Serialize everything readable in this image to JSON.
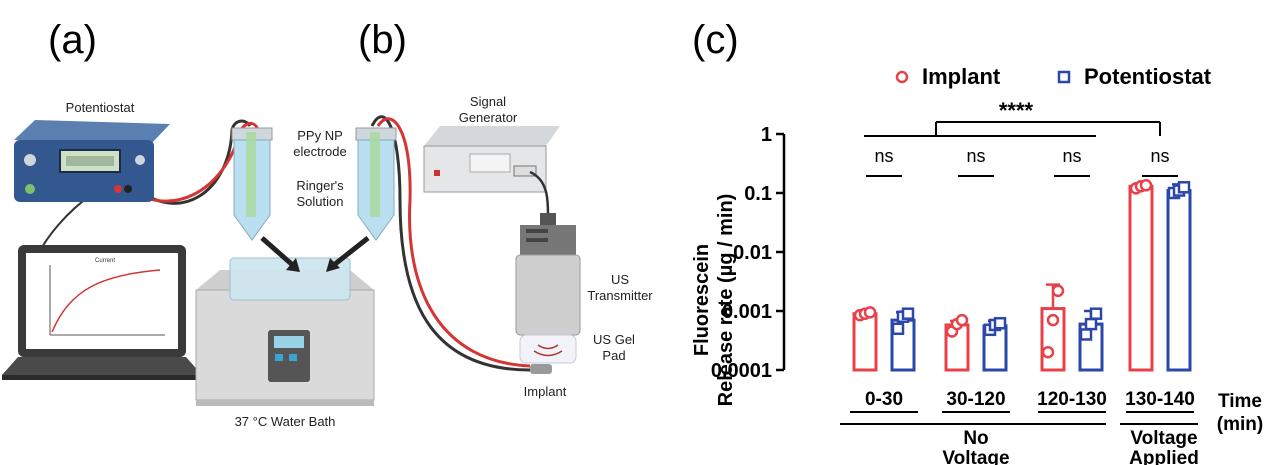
{
  "panels": {
    "a": "(a)",
    "b": "(b)",
    "c": "(c)"
  },
  "setup_labels": {
    "potentiostat": "Potentiostat",
    "ppy_electrode": [
      "PPy NP",
      "electrode"
    ],
    "ringers": [
      "Ringer's",
      "Solution"
    ],
    "water_bath": "37 °C Water Bath",
    "signal_generator": [
      "Signal",
      "Generator"
    ],
    "us_transmitter": [
      "US",
      "Transmitter"
    ],
    "us_gel_pad": [
      "US Gel",
      "Pad"
    ],
    "implant": "Implant",
    "laptop_plot_title": "Current"
  },
  "colors": {
    "implant": "#e8414a",
    "potentiostat": "#2b47a8"
  },
  "chart_data": {
    "type": "bar",
    "ylabel": [
      "Fluorescein",
      "Release rate (µg / min)"
    ],
    "xlabel": [
      "Time",
      "(min)"
    ],
    "yscale": "log",
    "ylim": [
      0.0001,
      1
    ],
    "yticks": [
      "1",
      "0.1",
      "0.01",
      "0.001",
      "0.0001"
    ],
    "categories": [
      "0-30",
      "30-120",
      "120-130",
      "130-140"
    ],
    "groups": [
      {
        "label": [
          "No",
          "Voltage"
        ],
        "categories": [
          "0-30",
          "30-120",
          "120-130"
        ]
      },
      {
        "label": [
          "Voltage",
          "Applied"
        ],
        "categories": [
          "130-140"
        ]
      }
    ],
    "legend": {
      "placement": "top",
      "entries": [
        "Implant",
        "Potentiostat"
      ]
    },
    "series": [
      {
        "name": "Implant",
        "values": [
          0.0009,
          0.00058,
          0.0011,
          0.13
        ],
        "err_hi": [
          0.001,
          0.00068,
          0.0028,
          0.145
        ],
        "points": [
          [
            0.00085,
            0.0009,
            0.00095
          ],
          [
            0.00045,
            0.0006,
            0.0007
          ],
          [
            0.0002,
            0.0007,
            0.0022
          ],
          [
            0.12,
            0.13,
            0.135
          ]
        ]
      },
      {
        "name": "Potentiostat",
        "values": [
          0.0007,
          0.00056,
          0.0006,
          0.11
        ],
        "err_hi": [
          0.00095,
          0.00068,
          0.001,
          0.14
        ],
        "points": [
          [
            0.0005,
            0.0008,
            0.0009
          ],
          [
            0.00048,
            0.00058,
            0.00062
          ],
          [
            0.0004,
            0.0006,
            0.0009
          ],
          [
            0.1,
            0.11,
            0.125
          ]
        ]
      }
    ],
    "significance": {
      "pairwise": [
        "ns",
        "ns",
        "ns",
        "ns"
      ],
      "overall": "****"
    }
  }
}
